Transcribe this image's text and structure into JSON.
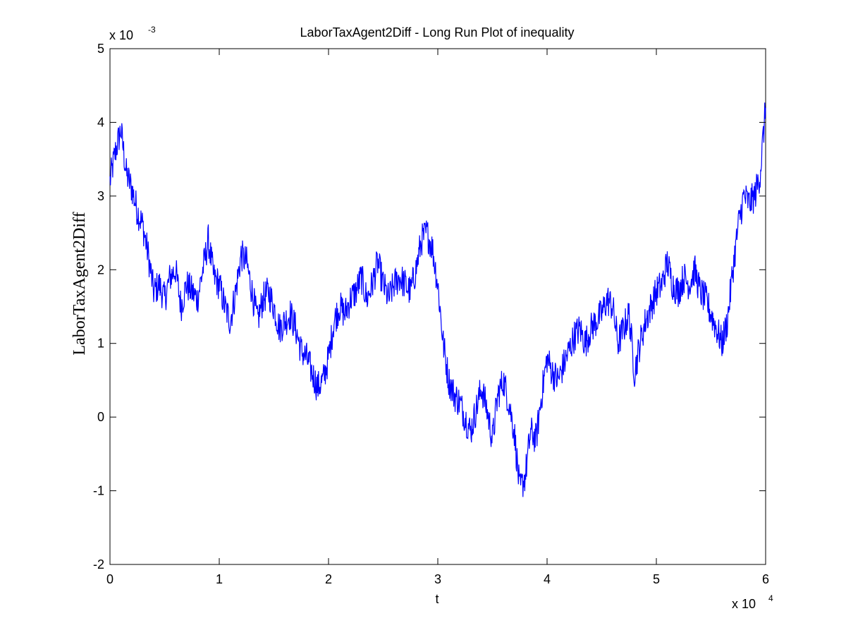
{
  "chart_data": {
    "type": "line",
    "title": "LaborTaxAgent2Diff - Long Run Plot of  inequality",
    "xlabel": "t",
    "ylabel": "LaborTaxAgent2Diff",
    "x_multiplier": "x 10",
    "x_multiplier_exp": "4",
    "y_multiplier": "x 10",
    "y_multiplier_exp": "-3",
    "xlim": [
      0,
      60000
    ],
    "ylim": [
      -0.002,
      0.005
    ],
    "x_ticks": [
      0,
      1,
      2,
      3,
      4,
      5,
      6
    ],
    "y_ticks": [
      -2,
      -1,
      0,
      1,
      2,
      3,
      4,
      5
    ],
    "grid": false,
    "line_color": "#0000ff",
    "series": [
      {
        "x": [
          0,
          500,
          1000,
          1500,
          2000,
          2500,
          3000,
          3500,
          4000,
          4500,
          5000,
          5500,
          6000,
          6500,
          7000,
          7500,
          8000,
          8500,
          9000,
          9500,
          10000,
          10500,
          11000,
          11500,
          12000,
          12500,
          13000,
          13500,
          14000,
          14500,
          15000,
          15500,
          16000,
          16500,
          17000,
          17500,
          18000,
          18500,
          19000,
          19500,
          20000,
          20500,
          21000,
          21500,
          22000,
          22500,
          23000,
          23500,
          24000,
          24500,
          25000,
          25500,
          26000,
          26500,
          27000,
          27500,
          28000,
          28500,
          29000,
          29500,
          30000,
          30500,
          31000,
          31500,
          32000,
          32500,
          33000,
          33500,
          34000,
          34500,
          35000,
          35500,
          36000,
          36500,
          37000,
          37500,
          38000,
          38500,
          39000,
          39500,
          40000,
          40500,
          41000,
          41500,
          42000,
          42500,
          43000,
          43500,
          44000,
          44500,
          45000,
          45500,
          46000,
          46500,
          47000,
          47500,
          48000,
          48500,
          49000,
          49500,
          50000,
          50500,
          51000,
          51500,
          52000,
          52500,
          53000,
          53500,
          54000,
          54500,
          55000,
          55500,
          56000,
          56500,
          57000,
          57500,
          58000,
          58500,
          59000,
          59500,
          60000
        ],
        "y": [
          0.0032,
          0.0036,
          0.0039,
          0.0033,
          0.0031,
          0.0028,
          0.0026,
          0.0022,
          0.0017,
          0.0018,
          0.0016,
          0.0019,
          0.002,
          0.0015,
          0.0018,
          0.0017,
          0.0016,
          0.002,
          0.0024,
          0.0019,
          0.0018,
          0.0015,
          0.0013,
          0.0017,
          0.0022,
          0.0021,
          0.0017,
          0.0013,
          0.0016,
          0.0017,
          0.0015,
          0.0012,
          0.0013,
          0.0014,
          0.0012,
          0.0009,
          0.0008,
          0.0006,
          0.0004,
          0.0005,
          0.0008,
          0.0013,
          0.0015,
          0.0014,
          0.0016,
          0.0017,
          0.0019,
          0.0016,
          0.0018,
          0.0021,
          0.0018,
          0.0016,
          0.0018,
          0.0019,
          0.0018,
          0.0017,
          0.002,
          0.0024,
          0.0025,
          0.0023,
          0.0018,
          0.001,
          0.0005,
          0.0003,
          0.0002,
          0.0,
          -0.0002,
          0.0001,
          0.0004,
          0.0001,
          -0.0003,
          0.0003,
          0.0005,
          0.0002,
          -0.0002,
          -0.001,
          -0.0008,
          -0.0002,
          -0.0003,
          0.0003,
          0.0008,
          0.0006,
          0.0005,
          0.0007,
          0.0009,
          0.0011,
          0.0012,
          0.001,
          0.0012,
          0.0013,
          0.0014,
          0.0016,
          0.0015,
          0.001,
          0.0012,
          0.0014,
          0.0006,
          0.001,
          0.0013,
          0.0015,
          0.0017,
          0.0018,
          0.0021,
          0.0018,
          0.0017,
          0.0019,
          0.0018,
          0.002,
          0.0017,
          0.0016,
          0.0014,
          0.0012,
          0.001,
          0.0013,
          0.002,
          0.0026,
          0.003,
          0.0029,
          0.003,
          0.0033,
          0.0042
        ]
      }
    ]
  }
}
